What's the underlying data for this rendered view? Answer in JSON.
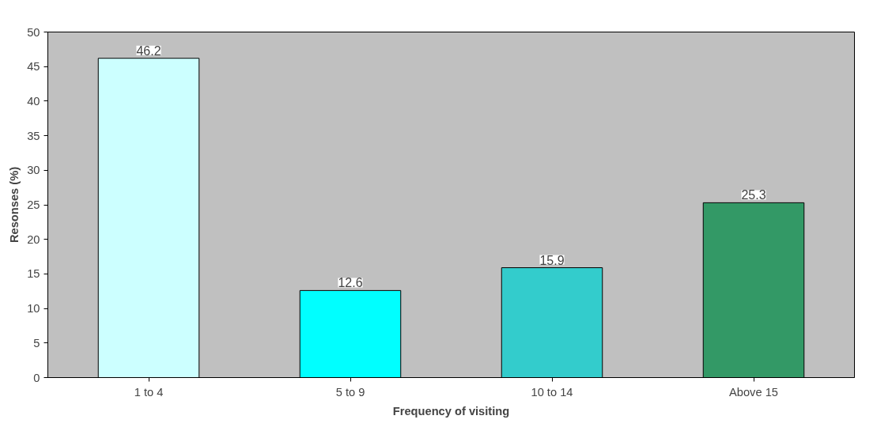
{
  "chart_data": {
    "type": "bar",
    "xlabel": "Frequency of visiting",
    "ylabel": "Resonses (%)",
    "categories": [
      "1 to 4",
      "5 to 9",
      "10 to 14",
      "Above 15"
    ],
    "values": [
      46.2,
      12.6,
      15.9,
      25.3
    ],
    "colors": [
      "#ccffff",
      "#00ffff",
      "#33cccc",
      "#339966"
    ],
    "ylim": [
      0,
      50
    ],
    "yticks": [
      0,
      5,
      10,
      15,
      20,
      25,
      30,
      35,
      40,
      45,
      50
    ],
    "data_labels": true,
    "grid": false
  }
}
